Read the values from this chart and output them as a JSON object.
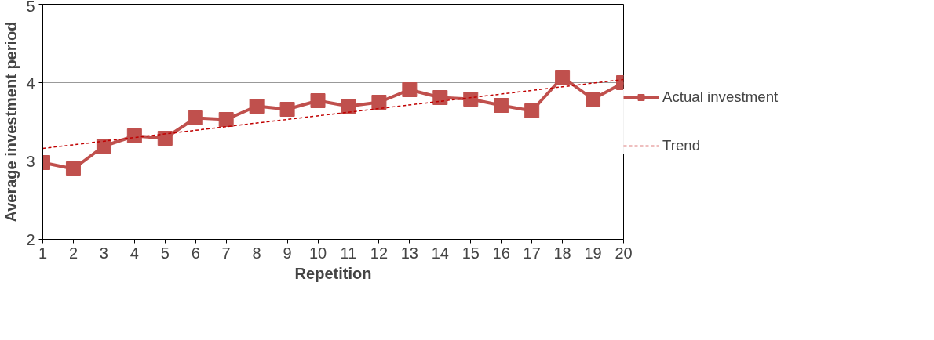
{
  "chart_data": {
    "type": "line",
    "xlabel": "Repetition",
    "ylabel": "Average investment period",
    "x": [
      1,
      2,
      3,
      4,
      5,
      6,
      7,
      8,
      9,
      10,
      11,
      12,
      13,
      14,
      15,
      16,
      17,
      18,
      19,
      20
    ],
    "xlim": [
      1,
      20
    ],
    "xticks": [
      1,
      2,
      3,
      4,
      5,
      6,
      7,
      8,
      9,
      10,
      11,
      12,
      13,
      14,
      15,
      16,
      17,
      18,
      19,
      20
    ],
    "ylim": [
      2,
      5
    ],
    "yticks": [
      2,
      3,
      4,
      5
    ],
    "grid": "y",
    "legend": "right",
    "series": [
      {
        "name": "Actual investment",
        "color": "#c0504d",
        "marker": "square",
        "line_style": "solid",
        "values": [
          2.98,
          2.9,
          3.19,
          3.32,
          3.29,
          3.55,
          3.53,
          3.7,
          3.66,
          3.77,
          3.7,
          3.75,
          3.91,
          3.81,
          3.79,
          3.71,
          3.64,
          4.07,
          3.79,
          4.0
        ]
      },
      {
        "name": "Trend",
        "type": "line",
        "color": "#c00000",
        "marker": "none",
        "line_style": "dashed",
        "x": [
          1,
          20
        ],
        "values": [
          3.16,
          4.04
        ]
      }
    ]
  }
}
